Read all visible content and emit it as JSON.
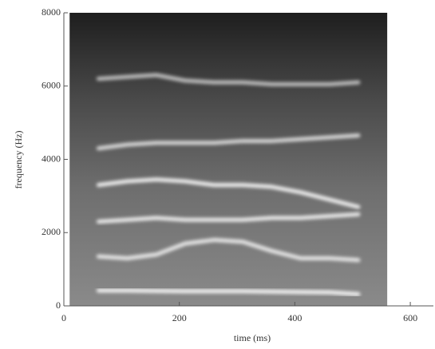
{
  "chart_data": {
    "type": "spectrogram",
    "x_label": "time (ms)",
    "y_label": "frequency (Hz)",
    "x": [
      10,
      60,
      110,
      160,
      210,
      260,
      310,
      360,
      410,
      460,
      510,
      560
    ],
    "series": [
      {
        "color": "#f4f4f4",
        "values": [
          null,
          420,
          420,
          410,
          400,
          400,
          400,
          390,
          380,
          370,
          320,
          null
        ]
      },
      {
        "color": "#e8e8e8",
        "values": [
          null,
          1350,
          1300,
          1400,
          1700,
          1800,
          1750,
          1500,
          1300,
          1300,
          1250,
          null
        ]
      },
      {
        "color": "#ececec",
        "values": [
          null,
          2300,
          2350,
          2400,
          2350,
          2350,
          2350,
          2400,
          2400,
          2450,
          2500,
          null
        ]
      },
      {
        "color": "#f0f0f0",
        "values": [
          null,
          3300,
          3400,
          3450,
          3400,
          3300,
          3300,
          3250,
          3100,
          2900,
          2700,
          null
        ]
      },
      {
        "color": "#d8d8d8",
        "values": [
          null,
          4300,
          4400,
          4450,
          4450,
          4450,
          4500,
          4500,
          4550,
          4600,
          4650,
          null
        ]
      },
      {
        "color": "#bdbdbd",
        "values": [
          null,
          6200,
          6250,
          6300,
          6150,
          6100,
          6100,
          6050,
          6050,
          6050,
          6100,
          null
        ]
      }
    ],
    "xlim": [
      0,
      640
    ],
    "xticks": [
      0,
      200,
      400,
      600
    ],
    "ylim": [
      0,
      8000
    ],
    "yticks": [
      0,
      2000,
      4000,
      6000,
      8000
    ]
  }
}
